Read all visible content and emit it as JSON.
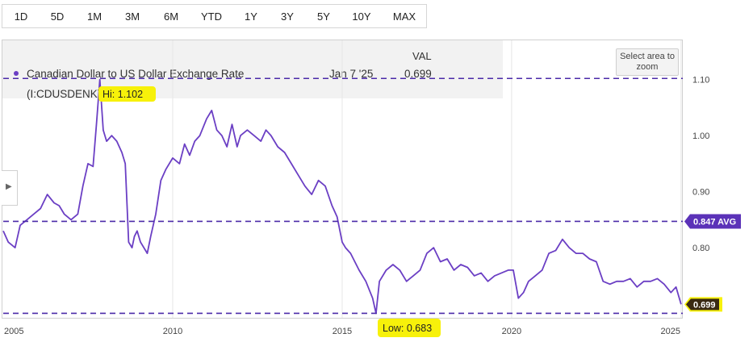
{
  "range_buttons": [
    "1D",
    "5D",
    "1M",
    "3M",
    "6M",
    "YTD",
    "1Y",
    "3Y",
    "5Y",
    "10Y",
    "MAX"
  ],
  "header": {
    "series_name": "Canadian Dollar to US Dollar Exchange Rate",
    "series_symbol": "(I:CDUSDENK)",
    "val_label": "VAL",
    "date": "Jan 7 '25",
    "value": "0.699"
  },
  "zoom_button": "Select area to zoom",
  "colors": {
    "series": "#6b3fc4",
    "reference_line": "#4b2aa8",
    "avg_badge": "#5b32b8",
    "highlight": "#f7f10a"
  },
  "chart_data": {
    "type": "line",
    "title": "Canadian Dollar to US Dollar Exchange Rate",
    "xlim": [
      2005.0,
      2025.05
    ],
    "ylim": [
      0.675,
      1.17
    ],
    "y_ticks": [
      "0.80",
      "0.90",
      "1.00",
      "1.10"
    ],
    "x_ticks": [
      "2005",
      "2010",
      "2015",
      "2020",
      "2025"
    ],
    "grid": true,
    "reference_lines": [
      {
        "label": "Hi: 1.102",
        "value": 1.102
      },
      {
        "label": "0.847 AVG",
        "value": 0.847
      },
      {
        "label": "Low: 0.683",
        "value": 0.683
      }
    ],
    "last_value_label": "0.699",
    "series": [
      {
        "x": [
          2005.0,
          2005.15,
          2005.35,
          2005.5,
          2005.7,
          2005.9,
          2006.1,
          2006.3,
          2006.5,
          2006.65,
          2006.8,
          2007.0,
          2007.2,
          2007.35,
          2007.5,
          2007.65,
          2007.75,
          2007.85,
          2007.95,
          2008.05,
          2008.2,
          2008.35,
          2008.5,
          2008.6,
          2008.7,
          2008.8,
          2008.87,
          2008.95,
          2009.05,
          2009.15,
          2009.25,
          2009.35,
          2009.5,
          2009.65,
          2009.8,
          2010.0,
          2010.2,
          2010.35,
          2010.5,
          2010.65,
          2010.8,
          2011.0,
          2011.15,
          2011.3,
          2011.45,
          2011.6,
          2011.75,
          2011.9,
          2012.0,
          2012.2,
          2012.4,
          2012.6,
          2012.75,
          2012.9,
          2013.1,
          2013.3,
          2013.5,
          2013.7,
          2013.9,
          2014.1,
          2014.3,
          2014.5,
          2014.7,
          2014.85,
          2015.0,
          2015.1,
          2015.25,
          2015.5,
          2015.7,
          2015.9,
          2016.0,
          2016.1,
          2016.3,
          2016.5,
          2016.7,
          2016.9,
          2017.1,
          2017.3,
          2017.5,
          2017.7,
          2017.9,
          2018.1,
          2018.3,
          2018.5,
          2018.7,
          2018.9,
          2019.1,
          2019.3,
          2019.5,
          2019.7,
          2019.9,
          2020.05,
          2020.2,
          2020.35,
          2020.5,
          2020.7,
          2020.9,
          2021.1,
          2021.3,
          2021.5,
          2021.7,
          2021.9,
          2022.1,
          2022.3,
          2022.5,
          2022.7,
          2022.9,
          2023.1,
          2023.3,
          2023.5,
          2023.7,
          2023.9,
          2024.1,
          2024.3,
          2024.5,
          2024.7,
          2024.85,
          2025.0
        ],
        "values": [
          0.83,
          0.81,
          0.8,
          0.84,
          0.85,
          0.86,
          0.87,
          0.895,
          0.88,
          0.875,
          0.86,
          0.85,
          0.86,
          0.91,
          0.95,
          0.945,
          1.02,
          1.1,
          1.01,
          0.99,
          1.0,
          0.99,
          0.97,
          0.95,
          0.81,
          0.8,
          0.82,
          0.83,
          0.81,
          0.8,
          0.79,
          0.82,
          0.86,
          0.92,
          0.94,
          0.96,
          0.95,
          0.985,
          0.965,
          0.99,
          1.0,
          1.03,
          1.045,
          1.01,
          1.0,
          0.98,
          1.02,
          0.98,
          1.0,
          1.01,
          1.0,
          0.99,
          1.01,
          1.0,
          0.98,
          0.97,
          0.95,
          0.93,
          0.91,
          0.895,
          0.92,
          0.91,
          0.875,
          0.855,
          0.81,
          0.8,
          0.79,
          0.76,
          0.74,
          0.71,
          0.683,
          0.74,
          0.76,
          0.77,
          0.76,
          0.74,
          0.75,
          0.76,
          0.79,
          0.8,
          0.775,
          0.78,
          0.76,
          0.77,
          0.765,
          0.75,
          0.755,
          0.74,
          0.75,
          0.755,
          0.76,
          0.76,
          0.71,
          0.72,
          0.74,
          0.75,
          0.76,
          0.79,
          0.795,
          0.815,
          0.8,
          0.79,
          0.79,
          0.78,
          0.775,
          0.74,
          0.735,
          0.74,
          0.74,
          0.745,
          0.73,
          0.74,
          0.74,
          0.745,
          0.735,
          0.72,
          0.73,
          0.699
        ]
      }
    ]
  }
}
